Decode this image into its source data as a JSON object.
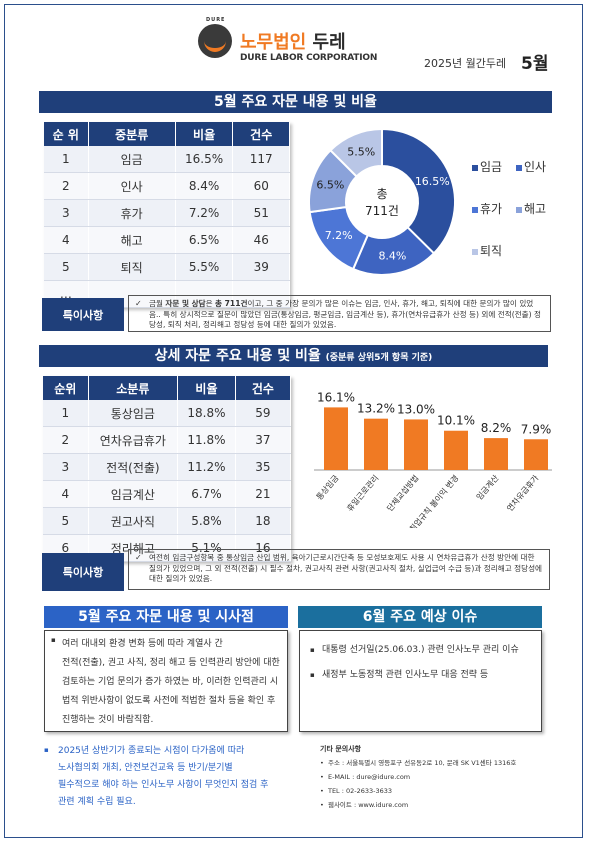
{
  "header": {
    "logo_small": "DURE",
    "brand_ko_accent": "노무법인",
    "brand_ko_main": "두레",
    "brand_en": "DURE LABOR CORPORATION",
    "issue_label": "2025년 월간두레",
    "issue_month": "5월"
  },
  "section1": {
    "title": "5월 주요 자문 내용 및 비율",
    "table": {
      "headers": [
        "순 위",
        "중분류",
        "비율",
        "건수"
      ],
      "rows": [
        [
          "1",
          "임금",
          "16.5%",
          "117"
        ],
        [
          "2",
          "인사",
          "8.4%",
          "60"
        ],
        [
          "3",
          "휴가",
          "7.2%",
          "51"
        ],
        [
          "4",
          "해고",
          "6.5%",
          "46"
        ],
        [
          "5",
          "퇴직",
          "5.5%",
          "39"
        ],
        [
          "…",
          "",
          "",
          ""
        ]
      ]
    },
    "donut": {
      "center_line1": "총",
      "center_line2": "711건",
      "labels": [
        "16.5%",
        "8.4%",
        "7.2%",
        "6.5%",
        "5.5%"
      ]
    },
    "legend": [
      "임금",
      "인사",
      "휴가",
      "해고",
      "퇴직"
    ],
    "note_label": "특이사항",
    "note_check": "✓",
    "note_prefix": "금월 ",
    "note_bold1": "자문 및 상담",
    "note_mid": "은 ",
    "note_bold2": "총 711건",
    "note_rest": "이고, 그 중 가장 문의가 많은 이슈는 임금, 인사, 휴가, 해고, 퇴직에 대한 문의가 많이 있었음.. 특히 상시적으로 질문이 많았던 임금(통상임금, 평균임금, 임금계산 등), 휴가(연차유급휴가 산정 등) 외에 전적(전출) 정당성, 퇴직 처리, 정리해고 정당성 등에 대한 질의가 있었음."
  },
  "section2": {
    "title": "상세 자문 주요 내용 및 비율",
    "subtitle": "(중분류 상위5개 항목 기준)",
    "table": {
      "headers": [
        "순위",
        "소분류",
        "비율",
        "건수"
      ],
      "rows": [
        [
          "1",
          "통상임금",
          "18.8%",
          "59"
        ],
        [
          "2",
          "연차유급휴가",
          "11.8%",
          "37"
        ],
        [
          "3",
          "전적(전출)",
          "11.2%",
          "35"
        ],
        [
          "4",
          "임금계산",
          "6.7%",
          "21"
        ],
        [
          "5",
          "권고사직",
          "5.8%",
          "18"
        ],
        [
          "6",
          "정리해고",
          "5.1%",
          "16"
        ]
      ]
    },
    "note_label": "특이사항",
    "note_check": "✓",
    "note_text": "여전히 임금구성항목 중 통상임금 산입 범위, 육아기근로시간단축 등 모성보호제도 사용 시 연차유급휴가 산정 방안에 대한 질의가 있었으며, 그 외 전적(전출) 시 필수 절차, 권고사직 관련 사항(권고사직 절차, 실업급여 수급 등)과 정리해고 정당성에 대한 질의가 있었음."
  },
  "chart_data": {
    "type": "bar",
    "categories": [
      "통상임금",
      "휴일근로관리",
      "단체교섭방법",
      "취업규칙 불이익 변경",
      "임금계산",
      "연차유급휴가"
    ],
    "values": [
      16.1,
      13.2,
      13.0,
      10.1,
      8.2,
      7.9
    ],
    "data_labels": [
      "16.1%",
      "13.2%",
      "13.0%",
      "10.1%",
      "8.2%",
      "7.9%"
    ],
    "color": "#f07a23"
  },
  "section3": {
    "left_title": "5월 주요 자문 내용 및 시사점",
    "left_bullet": "▪",
    "left_lines": [
      "여러 대내외 환경 변화 등에 따라 계열사 간",
      "전적(전출), 권고 사직, 정리 해고 등 인력관리 방안에 대한",
      "검토하는 기업 문의가 증가 하였는 바, 이러한 인력관리 시",
      "법적 위반사항이 없도록 사전에 적법한 절차 등을 확인 후",
      "진행하는 것이 바람직함."
    ],
    "right_title": "6월 주요 예상 이슈",
    "right_items": [
      "대통령 선거일(25.06.03.) 관련 인사노무 관리 이슈",
      "새정부 노동정책 관련 인사노무 대응 전략 등"
    ],
    "blue_bullet": "▪",
    "blue_lines": [
      "2025년 상반기가 종료되는 시점이 다가옴에 따라",
      "노사협의회 개최, 안전보건교육 등 반기/분기별",
      "필수적으로 해야 하는 인사노무 사항이 무엇인지 점검 후",
      "관련 계획 수립 필요."
    ],
    "contact_title": "기타 문의사항",
    "contact_items": [
      "주소 : 서울특별시  영등포구  선유동2로  10,  문래  SK  V1센타  1316호",
      "E-MAIL : dure@idure.com",
      "TEL : 02-2633-3633",
      "웹사이트 : www.idure.com"
    ]
  },
  "colors": {
    "navy": "#1f3f7a",
    "teal": "#1b6f9e",
    "orange": "#f07a23",
    "donut": [
      "#2b4f9e",
      "#3e64c1",
      "#4d76d6",
      "#8aa2da",
      "#b9c6e6"
    ]
  }
}
